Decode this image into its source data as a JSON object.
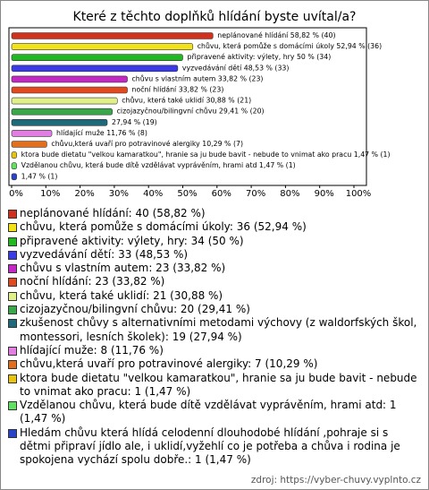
{
  "chart_data": {
    "type": "bar",
    "orientation": "horizontal",
    "title": "Které z těchto doplňků hlídání byste uvítal/a?",
    "values": [
      58.82,
      52.94,
      50,
      48.53,
      33.82,
      33.82,
      30.88,
      29.41,
      27.94,
      11.76,
      10.29,
      1.47,
      1.47,
      1.47
    ],
    "value_labels": [
      "neplánované hlídání 58,82 % (40)",
      "chůvu, která pomůže s domácími úkoly 52,94 % (36)",
      "připravené aktivity: výlety, hry 50 % (34)",
      "vyzvedávání dětí 48,53 % (33)",
      "chůvu s vlastním autem 33,82 % (23)",
      "noční hlídání 33,82 % (23)",
      "chůvu, která také uklidí 30,88 % (21)",
      "cizojazyčnou/bilingvní chůvu 29,41 % (20)",
      "27,94 % (19)",
      "hlídající muže 11,76 % (8)",
      "chůvu,která uvaří pro potravinové alergiky 10,29 % (7)",
      "ktora bude dietatu \"velkou kamaratkou\", hranie sa ju bude bavit - nebude to vnimat ako pracu 1,47 % (1)",
      "Vzdělanou chůvu, která bude dítě vzdělávat vyprávěním, hrami atd 1,47 % (1)",
      "1,47 % (1)"
    ],
    "colors": [
      "#d0301c",
      "#f2e21a",
      "#22b822",
      "#3a3ae8",
      "#c428c4",
      "#e04a1e",
      "#e2f08a",
      "#3aa84a",
      "#1e6a7a",
      "#e27ee2",
      "#e0701e",
      "#e8c410",
      "#62e062",
      "#2a44c8"
    ],
    "legend": [
      "neplánované hlídání: 40 (58,82 %)",
      "chůvu, která pomůže s domácími úkoly: 36 (52,94 %)",
      "připravené aktivity: výlety, hry: 34 (50 %)",
      "vyzvedávání dětí: 33 (48,53 %)",
      "chůvu s vlastním autem: 23 (33,82 %)",
      "noční hlídání: 23 (33,82 %)",
      "chůvu, která také uklidí: 21 (30,88 %)",
      "cizojazyčnou/bilingvní chůvu: 20 (29,41 %)",
      "zkušenost chůvy s alternativními metodami výchovy (z waldorfských škol, montessori, lesních školek): 19 (27,94 %)",
      "hlídající muže: 8 (11,76 %)",
      "chůvu,která uvaří pro potravinové alergiky: 7 (10,29 %)",
      "ktora bude dietatu \"velkou kamaratkou\", hranie sa ju bude bavit - nebude to vnimat ako pracu: 1 (1,47 %)",
      "Vzdělanou chůvu, která bude dítě vzdělávat vyprávěním, hrami atd: 1 (1,47 %)",
      "Hledám chůvu která hlídá celodenní dlouhodobé hlídání ,pohraje si s dětmi připraví jídlo ale, i uklidí,vyžehlí co je potřeba a chůva i rodina je spokojena vychází spolu dobře.: 1 (1,47 %)"
    ],
    "xlim": [
      0,
      100
    ],
    "xticks": [
      {
        "value": 0,
        "label": "0%"
      },
      {
        "value": 10,
        "label": "10%"
      },
      {
        "value": 20,
        "label": "20%"
      },
      {
        "value": 30,
        "label": "30%"
      },
      {
        "value": 40,
        "label": "40%"
      },
      {
        "value": 50,
        "label": "50%"
      },
      {
        "value": 60,
        "label": "60%"
      },
      {
        "value": 70,
        "label": "70%"
      },
      {
        "value": 80,
        "label": "80%"
      },
      {
        "value": 90,
        "label": "90%"
      },
      {
        "value": 100,
        "label": "100%"
      }
    ],
    "source": "zdroj: https://vyber-chuvy.vyplnto.cz"
  }
}
